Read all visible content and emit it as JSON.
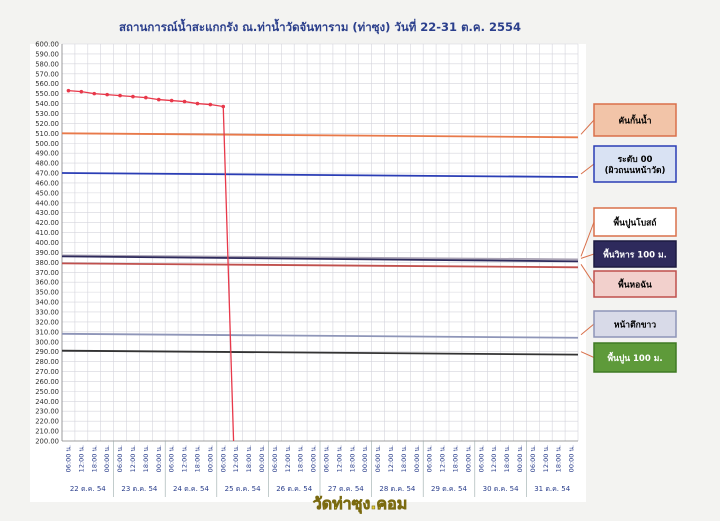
{
  "chart_data": {
    "type": "line",
    "title": "สถานการณ์น้ำสะแกกรัง ณ.ท่าน้ำวัดจันทาราม (ท่าซุง) วันที่ 22-31 ต.ค. 2554",
    "ylim": [
      200,
      600
    ],
    "ystep": 10,
    "grid": true,
    "x_tick_labels": [
      "06:00 น.",
      "12:00 น.",
      "18:00 น.",
      "00:00 น.",
      "06:00 น.",
      "12:00 น.",
      "18:00 น.",
      "00:00 น.",
      "06:00 น.",
      "12:00 น.",
      "18:00 น.",
      "00:00 น.",
      "06:00 น.",
      "12:00 น.",
      "18:00 น.",
      "00:00 น.",
      "06:00 น.",
      "12:00 น.",
      "18:00 น.",
      "00:00 น.",
      "06:00 น.",
      "12:00 น.",
      "18:00 น.",
      "00:00 น.",
      "06:00 น.",
      "12:00 น.",
      "18:00 น.",
      "00:00 น.",
      "06:00 น.",
      "12:00 น.",
      "18:00 น.",
      "00:00 น.",
      "06:00 น.",
      "12:00 น.",
      "18:00 น.",
      "00:00 น.",
      "06:00 น.",
      "12:00 น.",
      "18:00 น.",
      "00:00 น."
    ],
    "date_labels": [
      "22 ต.ค. 54",
      "23 ต.ค. 54",
      "24 ต.ค. 54",
      "25 ต.ค. 54",
      "26 ต.ค. 54",
      "27 ต.ค. 54",
      "28 ต.ค. 54",
      "29 ต.ค. 54",
      "30 ต.ค. 54",
      "31 ต.ค. 54"
    ],
    "level_series": {
      "color": "#e8384a",
      "values": [
        553,
        552,
        550,
        549,
        548,
        547,
        546,
        544,
        543,
        542,
        540,
        539,
        537,
        200
      ],
      "x_index": [
        0,
        1,
        2,
        3,
        4,
        5,
        6,
        7,
        8,
        9,
        10,
        11,
        12,
        12.8
      ]
    },
    "reference_lines": [
      {
        "name": "คันกั้นน้ำ",
        "color": "#e8794a",
        "start": 510,
        "end": 506,
        "label_fill": "#f2c4a8",
        "label_border": "#d9704a",
        "label_text_color": "#000000"
      },
      {
        "name": "ระดับ 00\n(ผิวถนนหน้าวัด)",
        "color": "#2a3db5",
        "start": 470,
        "end": 466,
        "label_fill": "#d9e2f3",
        "label_border": "#2a3db5",
        "label_text_color": "#000000"
      },
      {
        "name": "พื้นปูนโบสถ์",
        "color": "#a9a2b4",
        "start": 387,
        "end": 383,
        "label_fill": "#ffffff",
        "label_border": "#d9704a",
        "label_text_color": "#000000"
      },
      {
        "name": "พื้นวิหาร 100 ม.",
        "color": "#2e2a5c",
        "start": 386,
        "end": 381,
        "label_fill": "#2e2a5c",
        "label_border": "#1c1a40",
        "label_text_color": "#ffffff"
      },
      {
        "name": "พื้นหอฉัน",
        "color": "#c0504d",
        "start": 379,
        "end": 375,
        "label_fill": "#f2d0cc",
        "label_border": "#c0504d",
        "label_text_color": "#000000"
      },
      {
        "name": "หน้าตึกขาว",
        "color": "#8e95b8",
        "start": 308,
        "end": 304,
        "label_fill": "#d8dae8",
        "label_border": "#8e95b8",
        "label_text_color": "#000000"
      },
      {
        "name": "พื้นปูน 100 ม.",
        "color": "#333333",
        "start": 291,
        "end": 287,
        "label_fill": "#5e9a3a",
        "label_border": "#3f7a24",
        "label_text_color": "#ffffff"
      }
    ]
  },
  "watermark": "วัดท่าซุง.คอม"
}
